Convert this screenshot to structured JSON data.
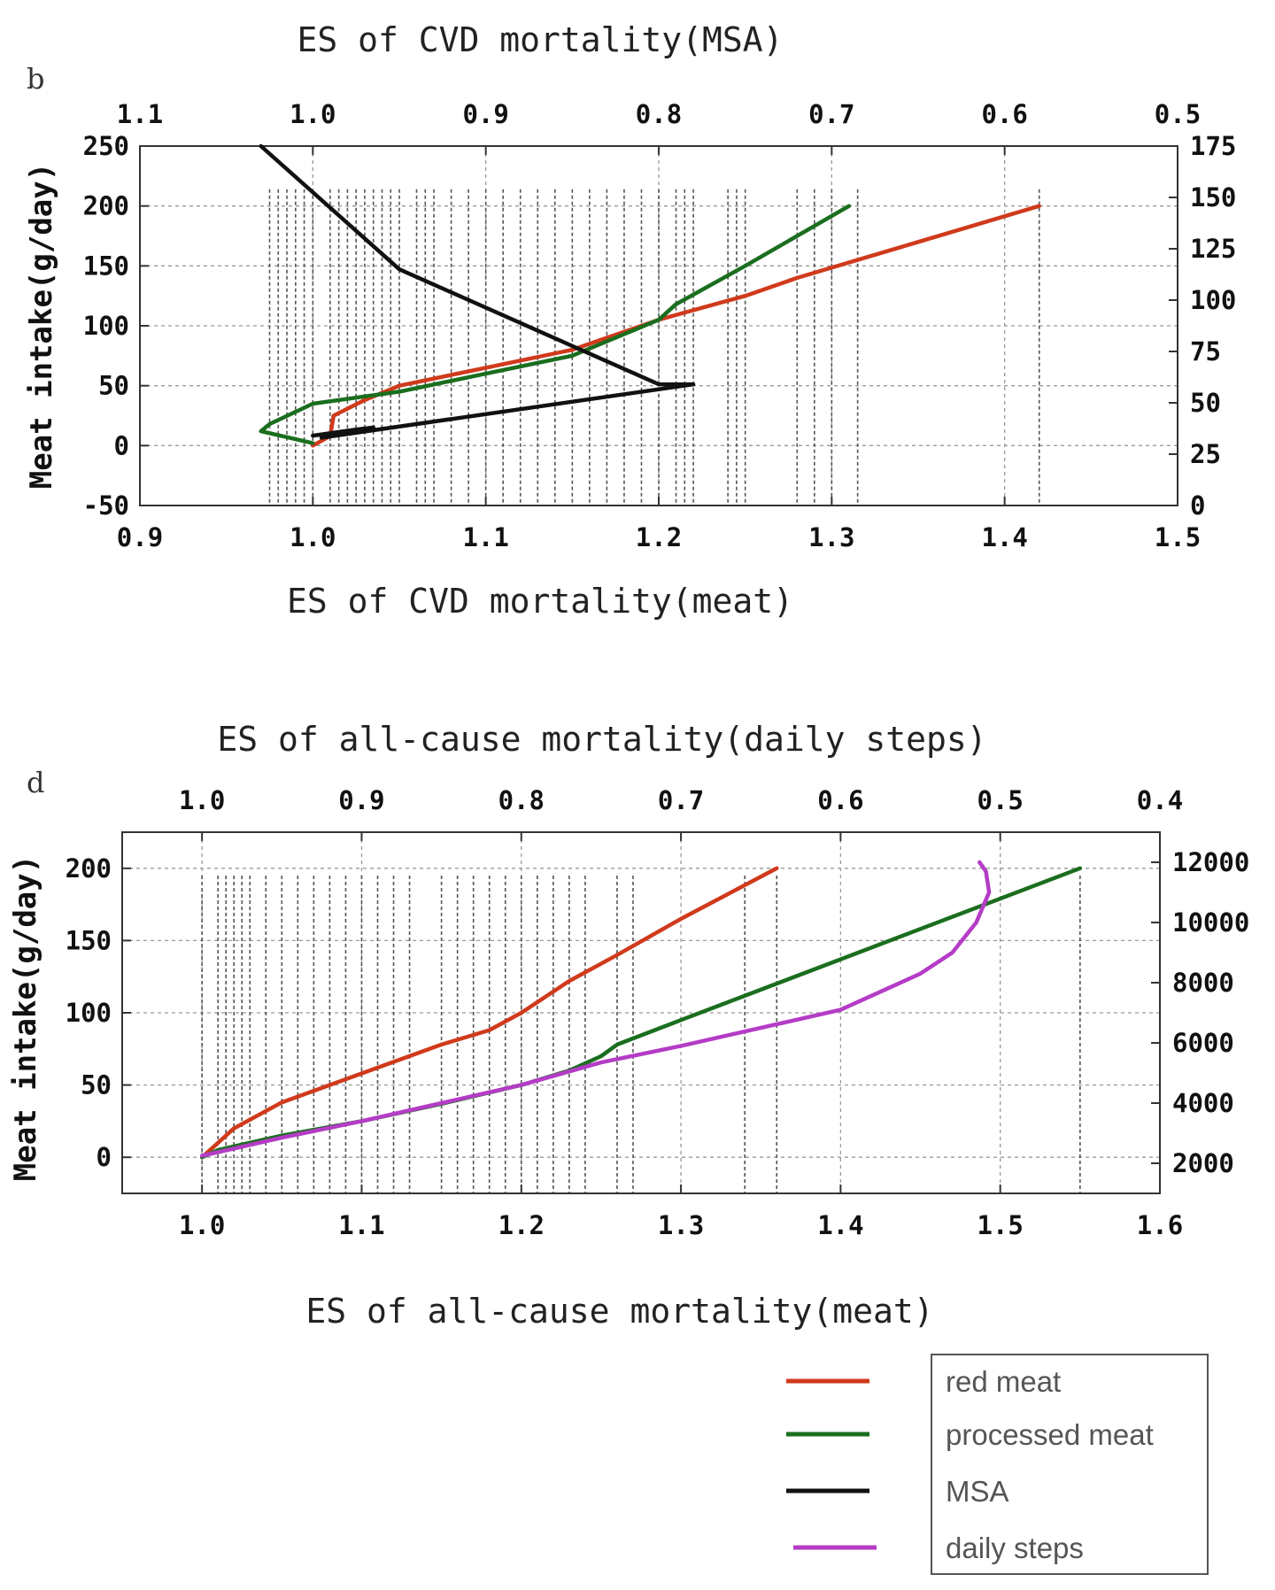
{
  "legend": {
    "items": [
      {
        "label": "red meat",
        "color": "#d03a1c"
      },
      {
        "label": "processed meat",
        "color": "#1a6e1e"
      },
      {
        "label": "MSA",
        "color": "#111111"
      },
      {
        "label": "daily steps",
        "color": "#b43cc6"
      }
    ]
  },
  "chart_data": [
    {
      "panel": "b",
      "type": "line",
      "title": "ES of CVD mortality(MSA)",
      "xlabel": "ES of CVD mortality(meat)",
      "ylabel": "Meat intake(g/day)",
      "xlim": [
        0.9,
        1.5
      ],
      "ylim": [
        -50,
        250
      ],
      "xticks": [
        0.9,
        1.0,
        1.1,
        1.2,
        1.3,
        1.4,
        1.5
      ],
      "yticks": [
        -50,
        0,
        50,
        100,
        150,
        200,
        250
      ],
      "xtick_labels": [
        "0.9",
        "1.0",
        "1.1",
        "1.2",
        "1.3",
        "1.4",
        "1.5"
      ],
      "ytick_labels": [
        "-50",
        "0",
        "50",
        "100",
        "150",
        "200",
        "250"
      ],
      "top_axis": {
        "lim": [
          1.1,
          0.5
        ],
        "ticks": [
          1.1,
          1.0,
          0.9,
          0.8,
          0.7,
          0.6,
          0.5
        ],
        "tick_labels": [
          "1.1",
          "1.0",
          "0.9",
          "0.8",
          "0.7",
          "0.6",
          "0.5"
        ]
      },
      "right_axis": {
        "lim": [
          0,
          175
        ],
        "ticks": [
          0,
          25,
          50,
          75,
          100,
          125,
          150,
          175
        ],
        "tick_labels": [
          "0",
          "25",
          "50",
          "75",
          "100",
          "125",
          "150",
          "175"
        ]
      },
      "series": [
        {
          "name": "red meat",
          "color": "#d03a1c",
          "axis": "bottom-left",
          "x": [
            1.0,
            1.01,
            1.012,
            1.03,
            1.05,
            1.1,
            1.15,
            1.2,
            1.25,
            1.28,
            1.35,
            1.42
          ],
          "y": [
            0,
            8,
            25,
            38,
            50,
            65,
            80,
            105,
            125,
            140,
            170,
            200
          ]
        },
        {
          "name": "processed meat",
          "color": "#1a6e1e",
          "axis": "bottom-left",
          "x": [
            1.0,
            0.97,
            0.975,
            1.0,
            1.05,
            1.1,
            1.15,
            1.2,
            1.21,
            1.25,
            1.31
          ],
          "y": [
            2,
            12,
            18,
            35,
            45,
            60,
            75,
            105,
            118,
            150,
            200
          ]
        },
        {
          "name": "MSA",
          "color": "#111111",
          "axis": "top-right",
          "x": [
            1.03,
            0.95,
            0.8,
            0.78,
            0.995,
            0.965,
            0.975,
            1.0
          ],
          "y": [
            175,
            115,
            59,
            59,
            33,
            38,
            37,
            34
          ]
        }
      ],
      "drop_lines_x": [
        0.975,
        0.98,
        0.985,
        0.99,
        0.995,
        1.0,
        1.01,
        1.015,
        1.02,
        1.025,
        1.03,
        1.035,
        1.04,
        1.045,
        1.05,
        1.06,
        1.065,
        1.07,
        1.08,
        1.09,
        1.1,
        1.11,
        1.12,
        1.13,
        1.14,
        1.15,
        1.16,
        1.17,
        1.18,
        1.19,
        1.2,
        1.21,
        1.215,
        1.22,
        1.24,
        1.245,
        1.25,
        1.28,
        1.29,
        1.3,
        1.315,
        1.42
      ]
    },
    {
      "panel": "d",
      "type": "line",
      "title": "ES of all-cause mortality(daily steps)",
      "xlabel": "ES of all-cause mortality(meat)",
      "ylabel": "Meat intake(g/day)",
      "xlim": [
        0.95,
        1.6
      ],
      "ylim": [
        -25,
        225
      ],
      "xticks": [
        1.0,
        1.1,
        1.2,
        1.3,
        1.4,
        1.5,
        1.6
      ],
      "yticks": [
        0,
        50,
        100,
        150,
        200
      ],
      "xtick_labels": [
        "1.0",
        "1.1",
        "1.2",
        "1.3",
        "1.4",
        "1.5",
        "1.6"
      ],
      "ytick_labels": [
        "0",
        "50",
        "100",
        "150",
        "200"
      ],
      "top_axis": {
        "lim": [
          1.05,
          0.4
        ],
        "ticks": [
          1.0,
          0.9,
          0.8,
          0.7,
          0.6,
          0.5,
          0.4
        ],
        "tick_labels": [
          "1.0",
          "0.9",
          "0.8",
          "0.7",
          "0.6",
          "0.5",
          "0.4"
        ]
      },
      "right_axis": {
        "lim": [
          1000,
          13000
        ],
        "ticks": [
          2000,
          4000,
          6000,
          8000,
          10000,
          12000
        ],
        "tick_labels": [
          "2000",
          "4000",
          "6000",
          "8000",
          "10000",
          "12000"
        ]
      },
      "series": [
        {
          "name": "red meat",
          "color": "#d03a1c",
          "axis": "bottom-left",
          "x": [
            1.0,
            1.01,
            1.02,
            1.05,
            1.08,
            1.1,
            1.15,
            1.18,
            1.2,
            1.23,
            1.26,
            1.3,
            1.36
          ],
          "y": [
            0,
            10,
            20,
            38,
            50,
            58,
            78,
            88,
            100,
            122,
            140,
            165,
            200
          ]
        },
        {
          "name": "processed meat",
          "color": "#1a6e1e",
          "axis": "bottom-left",
          "x": [
            1.0,
            1.01,
            1.05,
            1.1,
            1.15,
            1.2,
            1.23,
            1.25,
            1.26,
            1.3,
            1.4,
            1.55
          ],
          "y": [
            0,
            5,
            15,
            25,
            37,
            50,
            60,
            70,
            78,
            95,
            137,
            200
          ]
        },
        {
          "name": "daily steps",
          "color": "#b43cc6",
          "axis": "top-right",
          "x": [
            1.0,
            0.95,
            0.9,
            0.85,
            0.8,
            0.75,
            0.7,
            0.6,
            0.55,
            0.53,
            0.515,
            0.507,
            0.509,
            0.513
          ],
          "y": [
            2250,
            2850,
            3400,
            4000,
            4600,
            5350,
            5900,
            7100,
            8300,
            9000,
            10000,
            11000,
            11700,
            12000
          ]
        }
      ],
      "drop_lines_x": [
        1.0,
        1.01,
        1.015,
        1.02,
        1.025,
        1.03,
        1.04,
        1.05,
        1.06,
        1.07,
        1.08,
        1.09,
        1.1,
        1.11,
        1.12,
        1.13,
        1.15,
        1.16,
        1.17,
        1.18,
        1.19,
        1.2,
        1.21,
        1.22,
        1.23,
        1.24,
        1.26,
        1.27,
        1.34,
        1.36,
        1.55
      ]
    }
  ]
}
